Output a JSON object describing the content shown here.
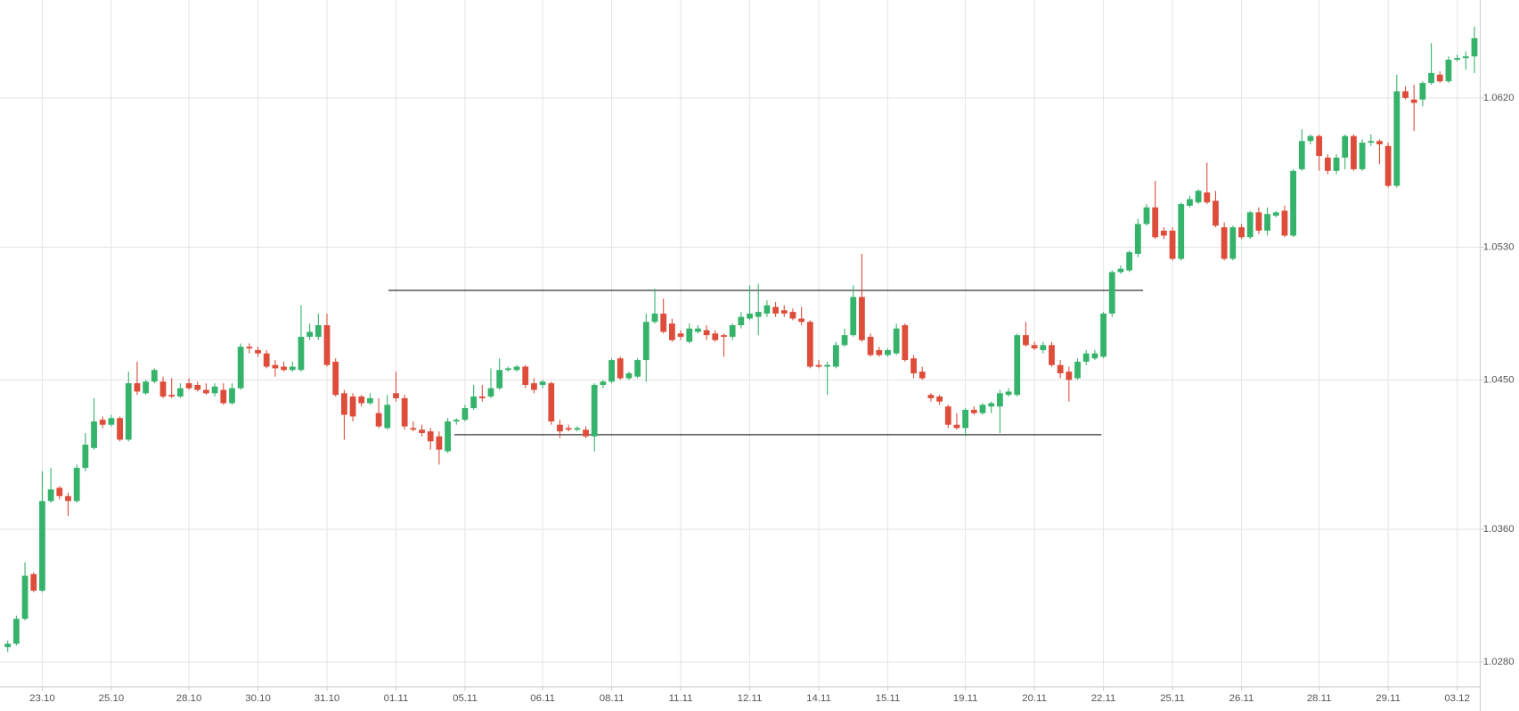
{
  "chart_data": {
    "type": "candlestick",
    "up_color": "#35b36b",
    "down_color": "#de4c3a",
    "level_color": "#333333",
    "grid": true,
    "ylim": [
      1.0265,
      1.0679
    ],
    "yticks": [
      {
        "value": 1.062,
        "label": "1.0620"
      },
      {
        "value": 1.053,
        "label": "1.0530"
      },
      {
        "value": 1.045,
        "label": "1.0450"
      },
      {
        "value": 1.036,
        "label": "1.0360"
      },
      {
        "value": 1.028,
        "label": "1.0280"
      }
    ],
    "levels": [
      1.0504,
      1.0417
    ],
    "categories": [
      null,
      null,
      null,
      null,
      "23.10",
      null,
      null,
      null,
      null,
      null,
      null,
      null,
      "25.10",
      null,
      null,
      null,
      null,
      null,
      null,
      null,
      null,
      "28.10",
      null,
      null,
      null,
      null,
      null,
      null,
      null,
      "30.10",
      null,
      null,
      null,
      null,
      null,
      null,
      null,
      "31.10",
      null,
      null,
      null,
      null,
      null,
      null,
      null,
      "01.11",
      null,
      null,
      null,
      null,
      null,
      null,
      null,
      "05.11",
      null,
      null,
      null,
      null,
      null,
      null,
      null,
      null,
      "06.11",
      null,
      null,
      null,
      null,
      null,
      null,
      null,
      "08.11",
      null,
      null,
      null,
      null,
      null,
      null,
      null,
      "11.11",
      null,
      null,
      null,
      null,
      null,
      null,
      null,
      "12.11",
      null,
      null,
      null,
      null,
      null,
      null,
      null,
      "14.11",
      null,
      null,
      null,
      null,
      null,
      null,
      null,
      "15.11",
      null,
      null,
      null,
      null,
      null,
      null,
      null,
      null,
      "19.11",
      null,
      null,
      null,
      null,
      null,
      null,
      null,
      "20.11",
      null,
      null,
      null,
      null,
      null,
      null,
      null,
      "22.11",
      null,
      null,
      null,
      null,
      null,
      null,
      null,
      "25.11",
      null,
      null,
      null,
      null,
      null,
      null,
      null,
      "26.11",
      null,
      null,
      null,
      null,
      null,
      null,
      null,
      null,
      "28.11",
      null,
      null,
      null,
      null,
      null,
      null,
      null,
      "29.11",
      null,
      null,
      null,
      null,
      null,
      null,
      null,
      "03.12",
      null,
      null
    ],
    "open": [
      1.0289,
      1.0291,
      1.0306,
      1.0333,
      1.0323,
      1.0377,
      1.0385,
      1.038,
      1.0377,
      1.0397,
      1.0409,
      1.0426,
      1.0423,
      1.0427,
      1.0414,
      1.0448,
      1.0442,
      1.0449,
      1.0449,
      1.0441,
      1.044,
      1.0448,
      1.0447,
      1.0444,
      1.0442,
      1.0444,
      1.0436,
      1.0445,
      1.047,
      1.0468,
      1.0466,
      1.0459,
      1.0458,
      1.0456,
      1.0456,
      1.0476,
      1.0476,
      1.0483,
      1.0461,
      1.0442,
      1.044,
      1.044,
      1.0436,
      1.043,
      1.0421,
      1.0442,
      1.0439,
      1.0421,
      1.042,
      1.0419,
      1.0416,
      1.0407,
      1.0425,
      1.0426,
      1.0433,
      1.044,
      1.044,
      1.0445,
      1.0456,
      1.0456,
      1.0458,
      1.0448,
      1.0447,
      1.0448,
      1.0423,
      1.0421,
      1.042,
      1.042,
      1.0416,
      1.0447,
      1.0449,
      1.0463,
      1.0451,
      1.0452,
      1.0462,
      1.0485,
      1.049,
      1.0484,
      1.0478,
      1.0473,
      1.0479,
      1.048,
      1.0478,
      1.0477,
      1.0476,
      1.0483,
      1.0487,
      1.0488,
      1.049,
      1.0494,
      1.0492,
      1.0491,
      1.0487,
      1.0485,
      1.0459,
      1.0458,
      1.0458,
      1.0471,
      1.0477,
      1.05,
      1.0476,
      1.0468,
      1.0465,
      1.0466,
      1.0483,
      1.0463,
      1.0455,
      1.0441,
      1.044,
      1.0434,
      1.0423,
      1.0421,
      1.0432,
      1.043,
      1.0434,
      1.0434,
      1.0441,
      1.0441,
      1.0477,
      1.0471,
      1.0468,
      1.0471,
      1.0459,
      1.0455,
      1.0451,
      1.0461,
      1.0463,
      1.0464,
      1.049,
      1.0515,
      1.0516,
      1.0526,
      1.0544,
      1.0554,
      1.054,
      1.054,
      1.0523,
      1.0555,
      1.0557,
      1.0563,
      1.0558,
      1.0542,
      1.0523,
      1.0542,
      1.0536,
      1.0551,
      1.054,
      1.0549,
      1.0552,
      1.0537,
      1.0577,
      1.0594,
      1.0597,
      1.0584,
      1.0576,
      1.0584,
      1.0597,
      1.0577,
      1.0593,
      1.0594,
      1.0591,
      1.0567,
      1.0624,
      1.0619,
      1.0619,
      1.0629,
      1.0634,
      1.063,
      1.0643,
      1.0644,
      1.0645
    ],
    "high": [
      1.0293,
      1.0308,
      1.034,
      1.0334,
      1.0395,
      1.0397,
      1.0386,
      1.0382,
      1.0399,
      1.0418,
      1.0439,
      1.0428,
      1.0429,
      1.0428,
      1.0455,
      1.0461,
      1.045,
      1.0457,
      1.0452,
      1.0451,
      1.0448,
      1.0451,
      1.0449,
      1.0448,
      1.0448,
      1.0448,
      1.0448,
      1.0472,
      1.0472,
      1.047,
      1.0468,
      1.0462,
      1.0461,
      1.0461,
      1.0495,
      1.0484,
      1.049,
      1.049,
      1.0463,
      1.0444,
      1.0442,
      1.0441,
      1.0442,
      1.0439,
      1.0441,
      1.0455,
      1.0441,
      1.0425,
      1.0423,
      1.0421,
      1.0419,
      1.0427,
      1.0427,
      1.0435,
      1.0447,
      1.0447,
      1.0457,
      1.0463,
      1.0458,
      1.0459,
      1.0459,
      1.0451,
      1.045,
      1.0449,
      1.0426,
      1.0423,
      1.0422,
      1.0422,
      1.0448,
      1.045,
      1.0463,
      1.0464,
      1.0455,
      1.0463,
      1.049,
      1.0505,
      1.0499,
      1.0487,
      1.048,
      1.0484,
      1.0483,
      1.0483,
      1.048,
      1.0478,
      1.0484,
      1.0491,
      1.0507,
      1.0508,
      1.0498,
      1.0497,
      1.0495,
      1.0493,
      1.0494,
      1.0486,
      1.0462,
      1.0461,
      1.0473,
      1.0481,
      1.0507,
      1.0526,
      1.0478,
      1.047,
      1.0469,
      1.0484,
      1.0484,
      1.0465,
      1.0458,
      1.0442,
      1.0441,
      1.0435,
      1.043,
      1.0433,
      1.0434,
      1.0436,
      1.0437,
      1.0444,
      1.0445,
      1.0478,
      1.0485,
      1.0473,
      1.0473,
      1.0473,
      1.0462,
      1.0458,
      1.0463,
      1.0468,
      1.0468,
      1.0491,
      1.0516,
      1.0519,
      1.0528,
      1.0547,
      1.0556,
      1.057,
      1.0542,
      1.0542,
      1.0557,
      1.0561,
      1.0565,
      1.0581,
      1.0564,
      1.0545,
      1.0543,
      1.0544,
      1.0552,
      1.0554,
      1.0554,
      1.0552,
      1.0555,
      1.0577,
      1.0601,
      1.0598,
      1.0598,
      1.0586,
      1.0586,
      1.0598,
      1.0598,
      1.0595,
      1.0598,
      1.0595,
      1.0593,
      1.0634,
      1.0627,
      1.0628,
      1.063,
      1.0653,
      1.0636,
      1.0645,
      1.0646,
      1.0648,
      1.0663
    ],
    "low": [
      1.0286,
      1.029,
      1.0305,
      1.0322,
      1.0322,
      1.0376,
      1.0378,
      1.0368,
      1.0376,
      1.0395,
      1.0408,
      1.0421,
      1.0422,
      1.0413,
      1.0413,
      1.0441,
      1.0441,
      1.0448,
      1.0439,
      1.0439,
      1.0439,
      1.0444,
      1.0443,
      1.0441,
      1.044,
      1.0435,
      1.0435,
      1.0444,
      1.0466,
      1.0464,
      1.0457,
      1.0452,
      1.0455,
      1.0455,
      1.0455,
      1.0474,
      1.0474,
      1.0458,
      1.044,
      1.0414,
      1.0425,
      1.0434,
      1.0435,
      1.0421,
      1.042,
      1.0437,
      1.042,
      1.0419,
      1.0416,
      1.0408,
      1.0399,
      1.0406,
      1.0423,
      1.0425,
      1.0432,
      1.0437,
      1.0439,
      1.0444,
      1.0455,
      1.0455,
      1.0445,
      1.0442,
      1.0445,
      1.0423,
      1.0415,
      1.0419,
      1.0419,
      1.0415,
      1.0407,
      1.0445,
      1.0448,
      1.045,
      1.045,
      1.0451,
      1.0449,
      1.0484,
      1.0478,
      1.0473,
      1.0474,
      1.0472,
      1.0478,
      1.0474,
      1.0473,
      1.0464,
      1.0474,
      1.0481,
      1.0486,
      1.0477,
      1.0488,
      1.0488,
      1.0488,
      1.0486,
      1.0483,
      1.0457,
      1.0457,
      1.0441,
      1.0457,
      1.047,
      1.0476,
      1.0473,
      1.0464,
      1.0464,
      1.0464,
      1.0465,
      1.0461,
      1.0451,
      1.045,
      1.0437,
      1.0435,
      1.0421,
      1.042,
      1.0416,
      1.0429,
      1.0429,
      1.043,
      1.0418,
      1.044,
      1.044,
      1.047,
      1.0468,
      1.0466,
      1.0458,
      1.0451,
      1.0437,
      1.045,
      1.0459,
      1.0462,
      1.0463,
      1.0488,
      1.0514,
      1.0515,
      1.0524,
      1.0543,
      1.0535,
      1.0535,
      1.0522,
      1.0522,
      1.0554,
      1.0556,
      1.0556,
      1.0542,
      1.0522,
      1.0522,
      1.0535,
      1.0535,
      1.0538,
      1.0537,
      1.0548,
      1.0536,
      1.0536,
      1.0576,
      1.0592,
      1.0576,
      1.0574,
      1.0574,
      1.0577,
      1.0576,
      1.0576,
      1.0591,
      1.058,
      1.0566,
      1.0566,
      1.0619,
      1.06,
      1.0615,
      1.0628,
      1.0629,
      1.0629,
      1.0642,
      1.0637,
      1.0635
    ],
    "close": [
      1.0291,
      1.0306,
      1.0332,
      1.0323,
      1.0377,
      1.0384,
      1.038,
      1.0377,
      1.0397,
      1.0411,
      1.0425,
      1.0423,
      1.0427,
      1.0414,
      1.0448,
      1.0443,
      1.0449,
      1.0456,
      1.044,
      1.044,
      1.0445,
      1.0445,
      1.0444,
      1.0442,
      1.0446,
      1.0436,
      1.0445,
      1.047,
      1.0469,
      1.0466,
      1.0458,
      1.0457,
      1.0456,
      1.0458,
      1.0476,
      1.0479,
      1.0483,
      1.0459,
      1.0441,
      1.0429,
      1.0428,
      1.0436,
      1.0439,
      1.0422,
      1.0435,
      1.0439,
      1.0422,
      1.042,
      1.0418,
      1.0413,
      1.0408,
      1.0425,
      1.0426,
      1.0433,
      1.044,
      1.0439,
      1.0445,
      1.0456,
      1.0457,
      1.0458,
      1.0447,
      1.0444,
      1.0449,
      1.0425,
      1.0419,
      1.042,
      1.0421,
      1.0416,
      1.0447,
      1.0449,
      1.0462,
      1.0451,
      1.0454,
      1.0462,
      1.0485,
      1.049,
      1.0479,
      1.0474,
      1.0476,
      1.0481,
      1.0481,
      1.0477,
      1.0474,
      1.0476,
      1.0483,
      1.0488,
      1.049,
      1.0491,
      1.0495,
      1.049,
      1.049,
      1.0487,
      1.0485,
      1.0458,
      1.0458,
      1.0459,
      1.0471,
      1.0477,
      1.05,
      1.0474,
      1.0465,
      1.0465,
      1.0468,
      1.0481,
      1.0462,
      1.0454,
      1.0451,
      1.0439,
      1.0437,
      1.0423,
      1.0421,
      1.0432,
      1.043,
      1.0435,
      1.0436,
      1.0442,
      1.0443,
      1.0477,
      1.0471,
      1.0469,
      1.0471,
      1.0459,
      1.0454,
      1.045,
      1.0461,
      1.0466,
      1.0466,
      1.049,
      1.0515,
      1.0517,
      1.0527,
      1.0544,
      1.0554,
      1.0536,
      1.0537,
      1.0523,
      1.0556,
      1.0559,
      1.0564,
      1.0557,
      1.0543,
      1.0523,
      1.0542,
      1.0536,
      1.0551,
      1.054,
      1.055,
      1.0551,
      1.0537,
      1.0576,
      1.0594,
      1.0597,
      1.0585,
      1.0576,
      1.0584,
      1.0597,
      1.0577,
      1.0593,
      1.0594,
      1.0592,
      1.0567,
      1.0624,
      1.062,
      1.0617,
      1.0629,
      1.0635,
      1.063,
      1.0643,
      1.0644,
      1.0645,
      1.0656
    ]
  }
}
